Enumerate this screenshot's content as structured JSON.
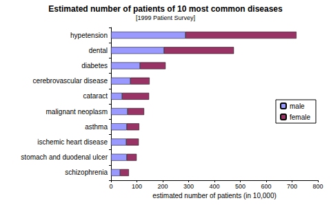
{
  "chart_data": {
    "type": "bar",
    "orientation": "horizontal",
    "stacked": true,
    "title": "Estimated number of patients of 10 most common diseases",
    "subtitle": "[1999 Patient Survey]",
    "x_label": "estimated number of patients (in 10,000)",
    "categories": [
      "hypetension",
      "dental",
      "diabetes",
      "cerebrovascular disease",
      "cataract",
      "malignant neoplasm",
      "asthma",
      "ischemic heart disease",
      "stomach and duodenal ulcer",
      "schizophrenia"
    ],
    "series": [
      {
        "name": "male",
        "color": "#9999ff",
        "values": [
          288,
          205,
          112,
          75,
          43,
          64,
          61,
          59,
          61,
          35
        ]
      },
      {
        "name": "female",
        "color": "#993366",
        "values": [
          429,
          270,
          99,
          74,
          104,
          64,
          48,
          48,
          38,
          34
        ]
      }
    ],
    "xlim": [
      0,
      800
    ],
    "xticks": [
      0,
      100,
      200,
      300,
      400,
      500,
      600,
      700,
      800
    ],
    "grid": false,
    "legend": "right"
  }
}
